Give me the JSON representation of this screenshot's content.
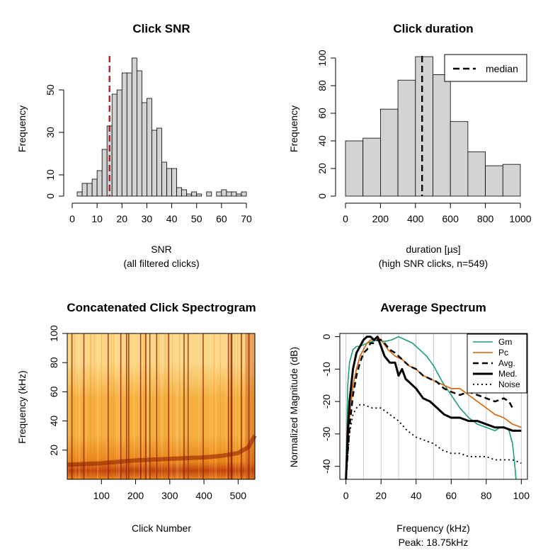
{
  "chart_data": [
    {
      "type": "bar",
      "title": "Click SNR",
      "xlabel": "SNR",
      "xlabel_sub": "(all filtered clicks)",
      "ylabel": "Frequency",
      "xlim": [
        0,
        70
      ],
      "ylim": [
        0,
        65
      ],
      "xticks": [
        0,
        10,
        20,
        30,
        40,
        50,
        60,
        70
      ],
      "yticks": [
        0,
        10,
        30,
        50
      ],
      "bin_width": 2,
      "bin_start": 0,
      "values": [
        0,
        2,
        6,
        6,
        8,
        12,
        22,
        33,
        48,
        50,
        58,
        58,
        65,
        59,
        44,
        46,
        31,
        32,
        16,
        13,
        13,
        4,
        3,
        1,
        2,
        1,
        0,
        2,
        0,
        2,
        3,
        2,
        2,
        1,
        2
      ],
      "color": "#d3d3d3",
      "vline": {
        "x": 15,
        "color": "#b22222",
        "style": "dashed"
      }
    },
    {
      "type": "bar",
      "title": "Click duration",
      "xlabel": "duration [µs]",
      "xlabel_sub": "(high SNR clicks, n=549)",
      "ylabel": "Frequency",
      "xlim": [
        0,
        1000
      ],
      "ylim": [
        0,
        100
      ],
      "xticks": [
        0,
        200,
        400,
        600,
        800,
        1000
      ],
      "yticks": [
        0,
        20,
        40,
        60,
        80,
        100
      ],
      "bin_width": 100,
      "bin_start": 0,
      "values": [
        40,
        42,
        63,
        84,
        101,
        88,
        54,
        32,
        22,
        23
      ],
      "color": "#d3d3d3",
      "vline": {
        "x": 438,
        "color": "#000000",
        "style": "dashed"
      },
      "legend": {
        "position": "top-right",
        "entries": [
          "median"
        ]
      }
    },
    {
      "type": "heatmap",
      "title": "Concatenated Click Spectrogram",
      "xlabel": "Click Number",
      "ylabel": "Frequency (kHz)",
      "xlim": [
        0,
        549
      ],
      "ylim": [
        0,
        100
      ],
      "xticks": [
        100,
        200,
        300,
        400,
        500
      ],
      "yticks": [
        20,
        40,
        60,
        80,
        100
      ],
      "colormap": [
        "#8b1a00",
        "#c1440e",
        "#e8841a",
        "#f5b040",
        "#fbd787",
        "#fff3cc"
      ],
      "dark_columns": [
        12,
        47,
        118,
        155,
        172,
        178,
        213,
        228,
        240,
        260,
        295,
        340,
        352,
        396,
        470,
        478,
        480,
        508,
        530
      ],
      "peak_curve": {
        "x": [
          0,
          100,
          200,
          300,
          400,
          450,
          500,
          530,
          549
        ],
        "y": [
          10,
          11,
          13,
          14,
          15,
          16,
          18,
          22,
          30
        ]
      }
    },
    {
      "type": "line",
      "title": "Average Spectrum",
      "xlabel": "Frequency (kHz)",
      "xlabel_sub": "Peak: 18.75kHz",
      "ylabel": "Normalized Magnitude (dB)",
      "xlim": [
        0,
        100
      ],
      "ylim": [
        -44,
        1
      ],
      "xticks": [
        0,
        20,
        40,
        60,
        80,
        100
      ],
      "yticks": [
        0,
        -10,
        -20,
        -30,
        -40
      ],
      "vgrid": [
        0,
        10,
        20,
        30,
        40,
        50,
        60,
        70,
        80,
        90,
        100
      ],
      "legend": {
        "position": "top-right"
      },
      "series": [
        {
          "name": "Gm",
          "color": "#1b9e77",
          "width": 1.6,
          "dash": "",
          "x": [
            0,
            1,
            2,
            4,
            6,
            8,
            10,
            12,
            15,
            18,
            22,
            26,
            30,
            34,
            38,
            42,
            46,
            50,
            55,
            60,
            65,
            70,
            75,
            80,
            85,
            88,
            91,
            93,
            95,
            96,
            97
          ],
          "y": [
            -44,
            -15,
            -8,
            -4,
            -3,
            -3,
            -2.5,
            -2,
            -1.5,
            -1,
            -1.5,
            -1,
            0,
            -1,
            -2,
            -4,
            -6,
            -9,
            -14,
            -18,
            -22,
            -25,
            -27,
            -28,
            -29,
            -28,
            -28,
            -29,
            -33,
            -38,
            -44
          ]
        },
        {
          "name": "Pc",
          "color": "#d95f02",
          "width": 1.6,
          "dash": "",
          "x": [
            0,
            1,
            2,
            4,
            6,
            8,
            10,
            12,
            14,
            16,
            18,
            20,
            24,
            28,
            32,
            36,
            40,
            44,
            48,
            52,
            56,
            60,
            65,
            70,
            75,
            80,
            85,
            90,
            95,
            100
          ],
          "y": [
            -44,
            -35,
            -25,
            -15,
            -10,
            -6,
            -4,
            -2,
            -1,
            -1,
            0,
            -1,
            -4,
            -6,
            -7,
            -9,
            -10,
            -12,
            -13,
            -14,
            -15,
            -16,
            -16,
            -18,
            -20,
            -22,
            -24,
            -25,
            -27,
            -28
          ]
        },
        {
          "name": "Avg.",
          "color": "#000000",
          "width": 2.5,
          "dash": "8,5",
          "x": [
            0,
            2,
            4,
            6,
            8,
            10,
            12,
            14,
            16,
            18,
            20,
            22,
            25,
            28,
            32,
            36,
            40,
            44,
            48,
            52,
            56,
            60,
            65,
            70,
            75,
            80,
            85,
            90,
            93,
            95
          ],
          "y": [
            -44,
            -28,
            -18,
            -12,
            -8,
            -5,
            -4,
            -2,
            -2,
            -1,
            -1,
            -2,
            -4,
            -5,
            -7,
            -9,
            -10,
            -12,
            -13,
            -14,
            -16,
            -17,
            -18,
            -17,
            -18,
            -19,
            -20,
            -19,
            -20,
            -22
          ]
        },
        {
          "name": "Med.",
          "color": "#000000",
          "width": 3,
          "dash": "",
          "x": [
            0,
            1,
            2,
            4,
            6,
            8,
            10,
            12,
            14,
            16,
            18,
            20,
            22,
            25,
            28,
            30,
            32,
            34,
            36,
            40,
            44,
            48,
            52,
            56,
            60,
            65,
            70,
            75,
            80,
            85,
            90,
            95,
            100
          ],
          "y": [
            -44,
            -30,
            -20,
            -10,
            -5,
            -3,
            -1,
            0,
            0,
            -1,
            0,
            -3,
            -6,
            -8,
            -8,
            -12,
            -10,
            -13,
            -14,
            -16,
            -19,
            -20,
            -22,
            -24,
            -25,
            -25,
            -26,
            -26,
            -27,
            -28,
            -28,
            -29,
            -29
          ]
        },
        {
          "name": "Noise",
          "color": "#000000",
          "width": 1.8,
          "dash": "2,4",
          "x": [
            0,
            2,
            4,
            6,
            8,
            10,
            15,
            20,
            25,
            30,
            35,
            40,
            45,
            50,
            55,
            60,
            65,
            70,
            75,
            80,
            85,
            90,
            95,
            100
          ],
          "y": [
            -44,
            -30,
            -24,
            -22,
            -21,
            -21,
            -22,
            -22,
            -24,
            -26,
            -29,
            -31,
            -32,
            -33,
            -35,
            -36,
            -36,
            -37,
            -37,
            -37,
            -38,
            -38,
            -38,
            -39
          ]
        }
      ]
    }
  ]
}
